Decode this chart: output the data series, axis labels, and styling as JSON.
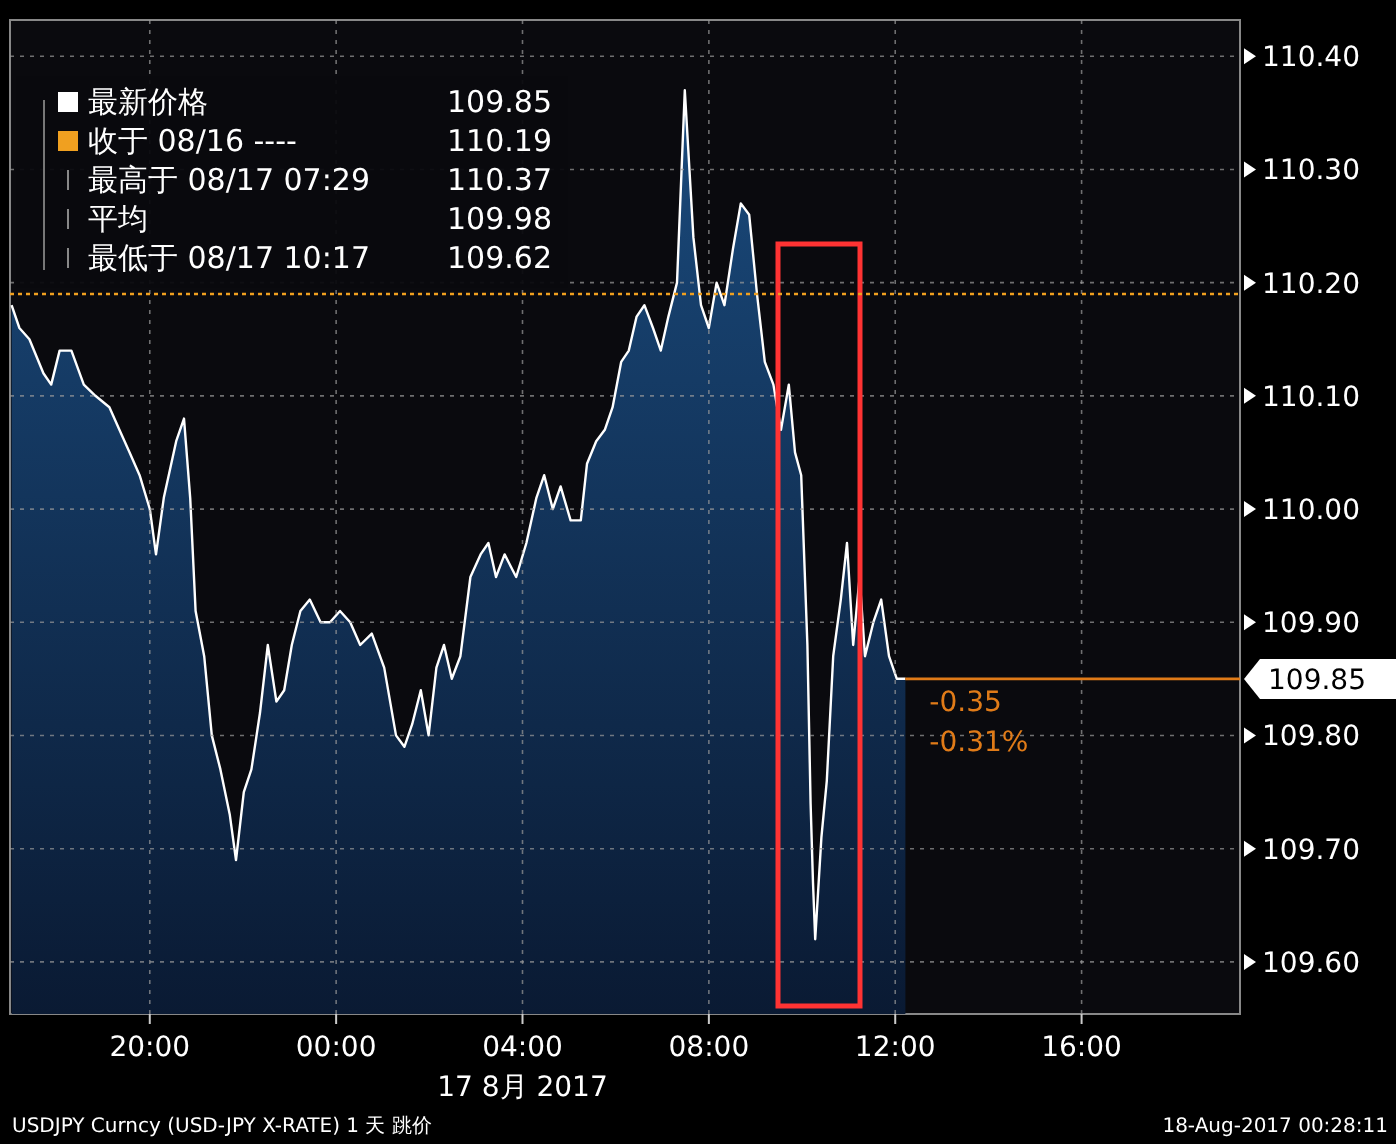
{
  "chart_data": {
    "type": "area",
    "xlabel": "17 8月 2017",
    "x": [
      "2017-08-16T17:02",
      "2017-08-16T17:12",
      "2017-08-16T17:25",
      "2017-08-16T17:43",
      "2017-08-16T17:53",
      "2017-08-16T18:04",
      "2017-08-16T18:19",
      "2017-08-16T18:35",
      "2017-08-16T18:50",
      "2017-08-16T19:08",
      "2017-08-16T19:21",
      "2017-08-16T19:34",
      "2017-08-16T19:47",
      "2017-08-16T20:00",
      "2017-08-16T20:08",
      "2017-08-16T20:18",
      "2017-08-16T20:34",
      "2017-08-16T20:44",
      "2017-08-16T20:52",
      "2017-08-16T20:59",
      "2017-08-16T21:10",
      "2017-08-16T21:20",
      "2017-08-16T21:31",
      "2017-08-16T21:43",
      "2017-08-16T21:51",
      "2017-08-16T22:01",
      "2017-08-16T22:11",
      "2017-08-16T22:22",
      "2017-08-16T22:32",
      "2017-08-16T22:43",
      "2017-08-16T22:53",
      "2017-08-16T23:03",
      "2017-08-16T23:14",
      "2017-08-16T23:26",
      "2017-08-16T23:40",
      "2017-08-16T23:52",
      "2017-08-17T00:05",
      "2017-08-17T00:18",
      "2017-08-17T00:31",
      "2017-08-17T00:46",
      "2017-08-17T01:02",
      "2017-08-17T01:17",
      "2017-08-17T01:28",
      "2017-08-17T01:38",
      "2017-08-17T01:49",
      "2017-08-17T01:59",
      "2017-08-17T02:09",
      "2017-08-17T02:19",
      "2017-08-17T02:29",
      "2017-08-17T02:40",
      "2017-08-17T02:53",
      "2017-08-17T03:06",
      "2017-08-17T03:16",
      "2017-08-17T03:26",
      "2017-08-17T03:37",
      "2017-08-17T03:52",
      "2017-08-17T04:05",
      "2017-08-17T04:18",
      "2017-08-17T04:28",
      "2017-08-17T04:39",
      "2017-08-17T04:49",
      "2017-08-17T05:02",
      "2017-08-17T05:15",
      "2017-08-17T05:23",
      "2017-08-17T05:35",
      "2017-08-17T05:46",
      "2017-08-17T05:56",
      "2017-08-17T06:07",
      "2017-08-17T06:17",
      "2017-08-17T06:27",
      "2017-08-17T06:37",
      "2017-08-17T06:48",
      "2017-08-17T06:58",
      "2017-08-17T07:08",
      "2017-08-17T07:19",
      "2017-08-17T07:29",
      "2017-08-17T07:40",
      "2017-08-17T07:50",
      "2017-08-17T08:00",
      "2017-08-17T08:10",
      "2017-08-17T08:20",
      "2017-08-17T08:31",
      "2017-08-17T08:41",
      "2017-08-17T08:52",
      "2017-08-17T09:02",
      "2017-08-17T09:12",
      "2017-08-17T09:23",
      "2017-08-17T09:33",
      "2017-08-17T09:43",
      "2017-08-17T09:51",
      "2017-08-17T09:59",
      "2017-08-17T10:07",
      "2017-08-17T10:11",
      "2017-08-17T10:14",
      "2017-08-17T10:17",
      "2017-08-17T10:25",
      "2017-08-17T10:32",
      "2017-08-17T10:40",
      "2017-08-17T10:50",
      "2017-08-17T10:58",
      "2017-08-17T11:06",
      "2017-08-17T11:14",
      "2017-08-17T11:21",
      "2017-08-17T11:32",
      "2017-08-17T11:42",
      "2017-08-17T11:52",
      "2017-08-17T12:02",
      "2017-08-17T12:13"
    ],
    "series": [
      {
        "name": "最新价格",
        "color": "#ffffff",
        "values": [
          110.18,
          110.16,
          110.15,
          110.12,
          110.11,
          110.14,
          110.14,
          110.11,
          110.1,
          110.09,
          110.07,
          110.05,
          110.03,
          110.0,
          109.96,
          110.01,
          110.06,
          110.08,
          110.01,
          109.91,
          109.87,
          109.8,
          109.77,
          109.73,
          109.69,
          109.75,
          109.77,
          109.82,
          109.88,
          109.83,
          109.84,
          109.88,
          109.91,
          109.92,
          109.9,
          109.9,
          109.91,
          109.9,
          109.88,
          109.89,
          109.86,
          109.8,
          109.79,
          109.81,
          109.84,
          109.8,
          109.86,
          109.88,
          109.85,
          109.87,
          109.94,
          109.96,
          109.97,
          109.94,
          109.96,
          109.94,
          109.97,
          110.01,
          110.03,
          110.0,
          110.02,
          109.99,
          109.99,
          110.04,
          110.06,
          110.07,
          110.09,
          110.13,
          110.14,
          110.17,
          110.18,
          110.16,
          110.14,
          110.17,
          110.2,
          110.37,
          110.24,
          110.18,
          110.16,
          110.2,
          110.18,
          110.23,
          110.27,
          110.26,
          110.19,
          110.13,
          110.11,
          110.07,
          110.11,
          110.05,
          110.03,
          109.88,
          109.74,
          109.67,
          109.62,
          109.71,
          109.76,
          109.87,
          109.92,
          109.97,
          109.88,
          109.94,
          109.87,
          109.9,
          109.92,
          109.87,
          109.85,
          109.85
        ]
      }
    ],
    "xlim": [
      "2017-08-16T17:00",
      "2017-08-17T19:24"
    ],
    "ylim": [
      109.554,
      110.432
    ],
    "xticks": [
      {
        "value": "2017-08-16T20:00",
        "label": "20:00"
      },
      {
        "value": "2017-08-17T00:00",
        "label": "00:00"
      },
      {
        "value": "2017-08-17T04:00",
        "label": "04:00"
      },
      {
        "value": "2017-08-17T08:00",
        "label": "08:00"
      },
      {
        "value": "2017-08-17T12:00",
        "label": "12:00"
      },
      {
        "value": "2017-08-17T16:00",
        "label": "16:00"
      }
    ],
    "yticks": [
      {
        "value": 109.6,
        "label": "109.60"
      },
      {
        "value": 109.7,
        "label": "109.70"
      },
      {
        "value": 109.8,
        "label": "109.80"
      },
      {
        "value": 109.9,
        "label": "109.90"
      },
      {
        "value": 110.0,
        "label": "110.00"
      },
      {
        "value": 110.1,
        "label": "110.10"
      },
      {
        "value": 110.2,
        "label": "110.20"
      },
      {
        "value": 110.3,
        "label": "110.30"
      },
      {
        "value": 110.4,
        "label": "110.40"
      }
    ],
    "ref_lines": [
      {
        "axis": "y",
        "value": 110.19,
        "label": "收于 08/16 ----",
        "color": "#f0a020",
        "line_style": "dotted"
      },
      {
        "axis": "y",
        "value": 109.85,
        "label": "109.85",
        "color": "#e07b18",
        "line_style": "solid"
      }
    ],
    "annotations": [
      "109.85",
      "110.19",
      "最高于 08/17 07:29 110.37",
      "平均 109.98",
      "最低于 08/17 10:17 109.62",
      "-0.35",
      "-0.31%",
      "USDJPY Curncy (USD-JPY X-RATE) 1 天  跳价",
      "18-Aug-2017 00:28:11"
    ],
    "grid": true,
    "legend": "top left"
  }
}
